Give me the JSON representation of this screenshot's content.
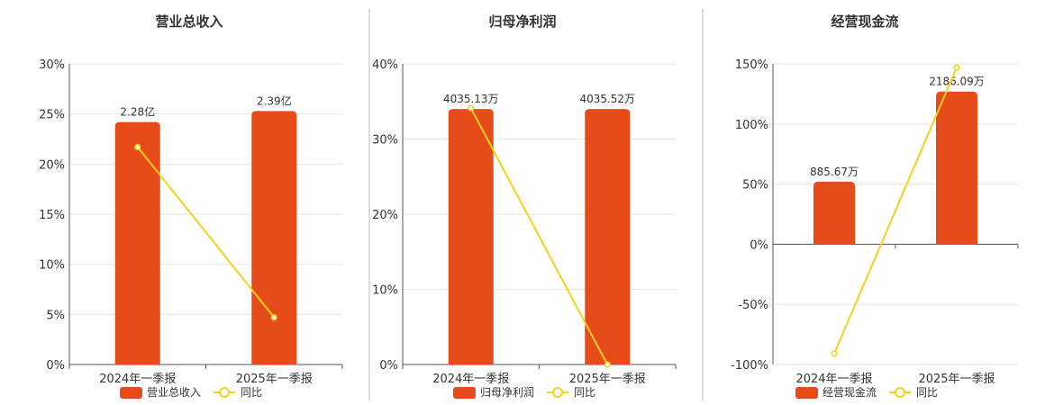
{
  "colors": {
    "bar": "#E84B1A",
    "line": "#F2D21B",
    "grid": "#e6e6e6",
    "axis": "#555555",
    "divider": "#bbbbbb"
  },
  "chart_data": [
    {
      "type": "bar",
      "title": "营业总收入",
      "categories": [
        "2024年一季报",
        "2025年一季报"
      ],
      "yticks": [
        "0%",
        "5%",
        "10%",
        "15%",
        "20%",
        "25%",
        "30%"
      ],
      "ylim": [
        0,
        30
      ],
      "series": [
        {
          "name": "营业总收入",
          "kind": "bar",
          "values": [
            24.2,
            25.3
          ],
          "labels": [
            "2.28亿",
            "2.39亿"
          ]
        },
        {
          "name": "同比",
          "kind": "line",
          "values": [
            21.7,
            4.7
          ]
        }
      ],
      "legend": [
        "营业总收入",
        "同比"
      ],
      "grid": true,
      "legend_position": "bottom"
    },
    {
      "type": "bar",
      "title": "归母净利润",
      "categories": [
        "2024年一季报",
        "2025年一季报"
      ],
      "yticks": [
        "0%",
        "10%",
        "20%",
        "30%",
        "40%"
      ],
      "ylim": [
        0,
        40
      ],
      "series": [
        {
          "name": "归母净利润",
          "kind": "bar",
          "values": [
            34.0,
            34.0
          ],
          "labels": [
            "4035.13万",
            "4035.52万"
          ]
        },
        {
          "name": "同比",
          "kind": "line",
          "values": [
            34.1,
            0.0
          ]
        }
      ],
      "legend": [
        "归母净利润",
        "同比"
      ],
      "grid": true,
      "legend_position": "bottom"
    },
    {
      "type": "bar",
      "title": "经营现金流",
      "categories": [
        "2024年一季报",
        "2025年一季报"
      ],
      "yticks": [
        "-100%",
        "-50%",
        "0%",
        "50%",
        "100%",
        "150%"
      ],
      "ylim": [
        -100,
        150
      ],
      "series": [
        {
          "name": "经营现金流",
          "kind": "bar",
          "values": [
            52,
            127
          ],
          "labels": [
            "885.67万",
            "2186.09万"
          ]
        },
        {
          "name": "同比",
          "kind": "line",
          "values": [
            -91,
            147
          ]
        }
      ],
      "legend": [
        "经营现金流",
        "同比"
      ],
      "grid": true,
      "legend_position": "bottom"
    }
  ]
}
